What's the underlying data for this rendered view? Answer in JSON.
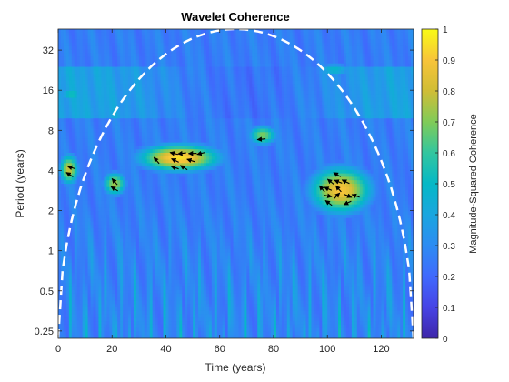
{
  "chart_data": {
    "type": "heatmap",
    "title": "Wavelet Coherence",
    "xlabel": "Time (years)",
    "ylabel": "Period (years)",
    "colorbar_label": "Magnitude-Squared Coherence",
    "xlim": [
      0,
      132
    ],
    "ylim": [
      0.22,
      46
    ],
    "yscale": "log2",
    "xticks": [
      0,
      20,
      40,
      60,
      80,
      100,
      120
    ],
    "yticks": [
      {
        "value": 0.25,
        "label": "0.25"
      },
      {
        "value": 0.5,
        "label": "0.5"
      },
      {
        "value": 1,
        "label": "1"
      },
      {
        "value": 2,
        "label": "2"
      },
      {
        "value": 4,
        "label": "4"
      },
      {
        "value": 8,
        "label": "8"
      },
      {
        "value": 16,
        "label": "16"
      },
      {
        "value": 32,
        "label": "32"
      }
    ],
    "clim": [
      0,
      1
    ],
    "cticks": [
      "0",
      "0.1",
      "0.2",
      "0.3",
      "0.4",
      "0.5",
      "0.6",
      "0.7",
      "0.8",
      "0.9",
      "1"
    ],
    "colormap": "parula",
    "cone_of_influence": {
      "peak_x": 66,
      "peak_period": 46,
      "style": "dashed",
      "color": "#ffffff"
    },
    "high_coherence_regions": [
      {
        "x": [
          28,
          62
        ],
        "period": [
          3.8,
          6.5
        ],
        "coherence": 0.95
      },
      {
        "x": [
          92,
          118
        ],
        "period": [
          1.8,
          4.5
        ],
        "coherence": 0.9
      },
      {
        "x": [
          0,
          8
        ],
        "period": [
          3.0,
          5.5
        ],
        "coherence": 0.8
      },
      {
        "x": [
          70,
          82
        ],
        "period": [
          6.0,
          9.0
        ],
        "coherence": 0.7
      },
      {
        "x": [
          16,
          26
        ],
        "period": [
          2.5,
          4.0
        ],
        "coherence": 0.75
      },
      {
        "x": [
          0,
          10
        ],
        "period": [
          13,
          17
        ],
        "coherence": 0.55
      },
      {
        "x": [
          95,
          110
        ],
        "period": [
          20,
          26
        ],
        "coherence": 0.5
      }
    ]
  }
}
